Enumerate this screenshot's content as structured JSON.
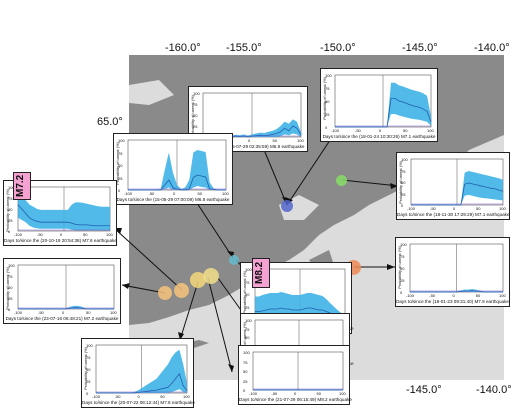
{
  "map": {
    "longitude_labels_top": [
      "-160.0°",
      "-155.0°",
      "-150.0°",
      "-145.0°",
      "-140.0°"
    ],
    "longitude_labels_bottom": [
      "-145.0°",
      "-140.0°"
    ],
    "latitude_labels": [
      "65.0°"
    ]
  },
  "panels": [
    {
      "id": "p1",
      "title": "Days to/since the (15-07-29 02:35:59) M6.8 earthquake",
      "yticks": [
        "100",
        "75",
        "50",
        "25",
        "0"
      ],
      "xticks": [
        "-100",
        "-50",
        "0",
        "50",
        "100"
      ],
      "ylabel": "Probability of unrest (%)",
      "curve": [
        0,
        0,
        1,
        0,
        2,
        0,
        1,
        0,
        2,
        1,
        2,
        0,
        2,
        3,
        4,
        3,
        4,
        6,
        8,
        12,
        20,
        14,
        25,
        20,
        5
      ],
      "upper": [
        3,
        2,
        4,
        3,
        5,
        3,
        4,
        3,
        5,
        4,
        6,
        3,
        6,
        8,
        10,
        9,
        12,
        14,
        18,
        25,
        35,
        30,
        40,
        35,
        10
      ],
      "lower": [
        0,
        0,
        0,
        0,
        0,
        0,
        0,
        0,
        0,
        0,
        0,
        0,
        0,
        0,
        0,
        0,
        0,
        0,
        0,
        2,
        6,
        4,
        8,
        6,
        0
      ]
    },
    {
      "id": "p2",
      "title": "Days to/since the (18-01-24 10:30:26) M7.1 earthquake",
      "yticks": [
        "100",
        "75",
        "50",
        "25",
        "0"
      ],
      "xticks": [
        "-100",
        "-50",
        "0",
        "50",
        "100"
      ],
      "ylabel": "Probability of unrest (%)",
      "curve": [
        0,
        0,
        0,
        0,
        0,
        0,
        0,
        0,
        0,
        0,
        0,
        0,
        0,
        0,
        55,
        55,
        50,
        48,
        45,
        42,
        40,
        38,
        35,
        30,
        10
      ],
      "upper": [
        1,
        1,
        1,
        1,
        1,
        1,
        1,
        1,
        1,
        1,
        1,
        1,
        1,
        1,
        85,
        85,
        80,
        78,
        75,
        72,
        70,
        68,
        65,
        60,
        20
      ],
      "lower": [
        0,
        0,
        0,
        0,
        0,
        0,
        0,
        0,
        0,
        0,
        0,
        0,
        0,
        0,
        25,
        25,
        22,
        20,
        18,
        16,
        15,
        14,
        12,
        10,
        2
      ]
    },
    {
      "id": "p3",
      "title": "Days to/since the (15-05-29 07:00:09) M6.8 earthquake",
      "yticks": [
        "100",
        "75",
        "50",
        "25",
        "0"
      ],
      "xticks": [
        "-100",
        "-50",
        "0",
        "50",
        "100"
      ],
      "ylabel": "Probability of unrest (%)",
      "curve": [
        0,
        0,
        0,
        0,
        0,
        0,
        0,
        0,
        0,
        10,
        20,
        5,
        2,
        0,
        0,
        2,
        25,
        30,
        28,
        26,
        2,
        1,
        0,
        0,
        0
      ],
      "upper": [
        1,
        1,
        1,
        1,
        1,
        1,
        1,
        1,
        2,
        40,
        75,
        35,
        10,
        2,
        5,
        20,
        75,
        80,
        78,
        76,
        15,
        3,
        1,
        1,
        1
      ],
      "lower": [
        0,
        0,
        0,
        0,
        0,
        0,
        0,
        0,
        0,
        2,
        5,
        0,
        0,
        0,
        0,
        0,
        5,
        8,
        6,
        5,
        0,
        0,
        0,
        0,
        0
      ]
    },
    {
      "id": "p4",
      "title": "Days to/since the (18-11-30 17:29:29) M7.1 earthquake",
      "yticks": [
        "100",
        "75",
        "50",
        "25",
        "0"
      ],
      "xticks": [
        "-100",
        "-50",
        "0",
        "50",
        "100"
      ],
      "ylabel": "Probability of unrest (%)",
      "curve": [
        0,
        0,
        0,
        0,
        0,
        0,
        0,
        0,
        0,
        0,
        0,
        0,
        0,
        0,
        45,
        48,
        46,
        44,
        42,
        40,
        38,
        36,
        35,
        32,
        30
      ],
      "upper": [
        1,
        1,
        1,
        1,
        1,
        1,
        1,
        1,
        1,
        1,
        1,
        1,
        1,
        1,
        70,
        74,
        72,
        70,
        68,
        66,
        64,
        62,
        60,
        58,
        55
      ],
      "lower": [
        0,
        0,
        0,
        0,
        0,
        0,
        0,
        0,
        0,
        0,
        0,
        0,
        0,
        0,
        20,
        22,
        20,
        18,
        16,
        15,
        14,
        13,
        12,
        11,
        10
      ]
    },
    {
      "id": "p5",
      "title": "Days to/since the (20-10-19 20:54:38) M7.6 earthquake",
      "yticks": [
        "100",
        "75",
        "50",
        "25",
        "0"
      ],
      "xticks": [
        "-100",
        "-50",
        "0",
        "50",
        "100"
      ],
      "ylabel": "Probability of unrest (%)",
      "curve": [
        60,
        50,
        40,
        30,
        25,
        22,
        20,
        20,
        20,
        20,
        20,
        20,
        20,
        20,
        18,
        15,
        14,
        14,
        14,
        13,
        12,
        12,
        12,
        12,
        12
      ],
      "upper": [
        90,
        80,
        70,
        60,
        55,
        50,
        48,
        48,
        48,
        48,
        48,
        48,
        48,
        48,
        60,
        65,
        65,
        64,
        62,
        60,
        58,
        56,
        55,
        55,
        55
      ],
      "lower": [
        30,
        25,
        20,
        12,
        8,
        6,
        5,
        5,
        5,
        5,
        5,
        5,
        5,
        5,
        3,
        1,
        1,
        1,
        1,
        1,
        1,
        1,
        1,
        1,
        1
      ]
    },
    {
      "id": "p6",
      "title": "Days to/since the (18-01-23 09:31:40) M7.9 earthquake",
      "yticks": [
        "100",
        "75",
        "50",
        "25",
        "0"
      ],
      "xticks": [
        "-100",
        "-50",
        "0",
        "50",
        "100"
      ],
      "ylabel": "Probability of unrest (%)",
      "curve": [
        0,
        0,
        0,
        0,
        0,
        0,
        0,
        0,
        0,
        0,
        0,
        0,
        0,
        1,
        2,
        2,
        3,
        2,
        1,
        0,
        0,
        0,
        0,
        0,
        0
      ],
      "upper": [
        1,
        1,
        1,
        1,
        1,
        1,
        1,
        1,
        1,
        1,
        1,
        1,
        1,
        3,
        5,
        5,
        6,
        5,
        3,
        1,
        1,
        1,
        1,
        1,
        1
      ],
      "lower": [
        0,
        0,
        0,
        0,
        0,
        0,
        0,
        0,
        0,
        0,
        0,
        0,
        0,
        0,
        0,
        0,
        0,
        0,
        0,
        0,
        0,
        0,
        0,
        0,
        0
      ]
    },
    {
      "id": "p7",
      "title": "Days to/since the (23-07-16 06:48:21) M7.2 earthquake",
      "yticks": [
        "100",
        "75",
        "50",
        "25",
        "0"
      ],
      "xticks": [
        "-100",
        "-50",
        "0",
        "50",
        "100"
      ],
      "ylabel": "Probability of unrest (%)",
      "curve": [
        0,
        0,
        0,
        0,
        0,
        0,
        0,
        0,
        0,
        0,
        0,
        0,
        0,
        2,
        3,
        3,
        2,
        0,
        0,
        0,
        0,
        0,
        0,
        0,
        0
      ],
      "upper": [
        1,
        1,
        1,
        1,
        1,
        1,
        1,
        1,
        1,
        1,
        1,
        1,
        1,
        5,
        7,
        7,
        5,
        1,
        1,
        1,
        1,
        1,
        1,
        1,
        1
      ],
      "lower": [
        0,
        0,
        0,
        0,
        0,
        0,
        0,
        0,
        0,
        0,
        0,
        0,
        0,
        0,
        0,
        0,
        0,
        0,
        0,
        0,
        0,
        0,
        0,
        0,
        0
      ]
    },
    {
      "id": "p8",
      "title": "Days to/since the (21-10-11 09:10:25) M8.2 earthquake",
      "yticks": [
        "100",
        "75",
        "50",
        "25",
        "0"
      ],
      "xticks": [
        "-100",
        "-50",
        "0",
        "50",
        "100"
      ],
      "ylabel": "Probability of unrest (%)",
      "curve": [
        15,
        15,
        16,
        18,
        20,
        20,
        20,
        22,
        20,
        20,
        18,
        18,
        18,
        20,
        22,
        22,
        20,
        18,
        18,
        15,
        12,
        10,
        8,
        5,
        5
      ],
      "upper": [
        45,
        45,
        48,
        50,
        52,
        52,
        52,
        54,
        52,
        50,
        48,
        48,
        48,
        50,
        52,
        52,
        50,
        48,
        46,
        40,
        32,
        25,
        18,
        12,
        10
      ],
      "lower": [
        0,
        0,
        0,
        0,
        0,
        0,
        0,
        0,
        0,
        0,
        0,
        0,
        0,
        0,
        0,
        0,
        0,
        0,
        0,
        0,
        0,
        0,
        0,
        0,
        0
      ]
    },
    {
      "id": "p9",
      "title": "Days to/since the (21-08-14 11:57:43) M6.9 earthquake",
      "yticks": [
        "100",
        "75",
        "50",
        "25",
        "0"
      ],
      "xticks": [
        "-100",
        "-50",
        "0",
        "50",
        "100"
      ],
      "ylabel": "Probability of unrest (%)",
      "curve": [
        0,
        0,
        0,
        0,
        0,
        0,
        0,
        0,
        0,
        0,
        0,
        0,
        0,
        0,
        0,
        0,
        0,
        0,
        0,
        0,
        0,
        0,
        0,
        0,
        0
      ],
      "upper": [
        1,
        1,
        1,
        1,
        1,
        1,
        1,
        1,
        1,
        1,
        1,
        1,
        1,
        1,
        1,
        1,
        1,
        1,
        1,
        1,
        1,
        1,
        1,
        1,
        1
      ],
      "lower": [
        0,
        0,
        0,
        0,
        0,
        0,
        0,
        0,
        0,
        0,
        0,
        0,
        0,
        0,
        0,
        0,
        0,
        0,
        0,
        0,
        0,
        0,
        0,
        0,
        0
      ]
    },
    {
      "id": "p10",
      "title": "Days to/since the (20-07-22 06:12:44) M7.8 earthquake",
      "yticks": [
        "100",
        "75",
        "50",
        "25",
        "0"
      ],
      "xticks": [
        "-100",
        "-50",
        "0",
        "50",
        "100"
      ],
      "ylabel": "Probability of unrest (%)",
      "curve": [
        0,
        0,
        0,
        0,
        0,
        0,
        0,
        0,
        0,
        0,
        0,
        1,
        2,
        3,
        4,
        5,
        6,
        8,
        10,
        12,
        20,
        30,
        40,
        15,
        5
      ],
      "upper": [
        1,
        1,
        1,
        1,
        1,
        1,
        1,
        1,
        1,
        1,
        2,
        5,
        10,
        15,
        20,
        25,
        30,
        40,
        50,
        60,
        75,
        85,
        90,
        60,
        20
      ],
      "lower": [
        0,
        0,
        0,
        0,
        0,
        0,
        0,
        0,
        0,
        0,
        0,
        0,
        0,
        0,
        0,
        0,
        0,
        0,
        0,
        0,
        2,
        5,
        8,
        2,
        0
      ]
    },
    {
      "id": "p11",
      "title": "Days to/since the (21-07-29 06:15:49) M8.2 earthquake",
      "yticks": [
        "100",
        "75",
        "50",
        "25",
        "0"
      ],
      "xticks": [
        "-100",
        "-50",
        "0",
        "50",
        "100"
      ],
      "ylabel": "",
      "curve": [
        0,
        0,
        0,
        0,
        0,
        0,
        0,
        0,
        0,
        0,
        0,
        0,
        0,
        0,
        0,
        0,
        0,
        0,
        0,
        0,
        0,
        0,
        0,
        0,
        0
      ],
      "upper": [
        1,
        1,
        1,
        1,
        1,
        1,
        1,
        1,
        1,
        1,
        1,
        1,
        1,
        1,
        1,
        1,
        1,
        1,
        1,
        1,
        1,
        1,
        1,
        1,
        1
      ],
      "lower": [
        0,
        0,
        0,
        0,
        0,
        0,
        0,
        0,
        0,
        0,
        0,
        0,
        0,
        0,
        0,
        0,
        0,
        0,
        0,
        0,
        0,
        0,
        0,
        0,
        0
      ]
    }
  ],
  "magnitude_tags": [
    "M7.2",
    "M8.2"
  ],
  "colors": {
    "band": "#3fb3e6",
    "curve": "#1f5fb0",
    "land": "#888888",
    "sea": "#dcdcdc"
  }
}
